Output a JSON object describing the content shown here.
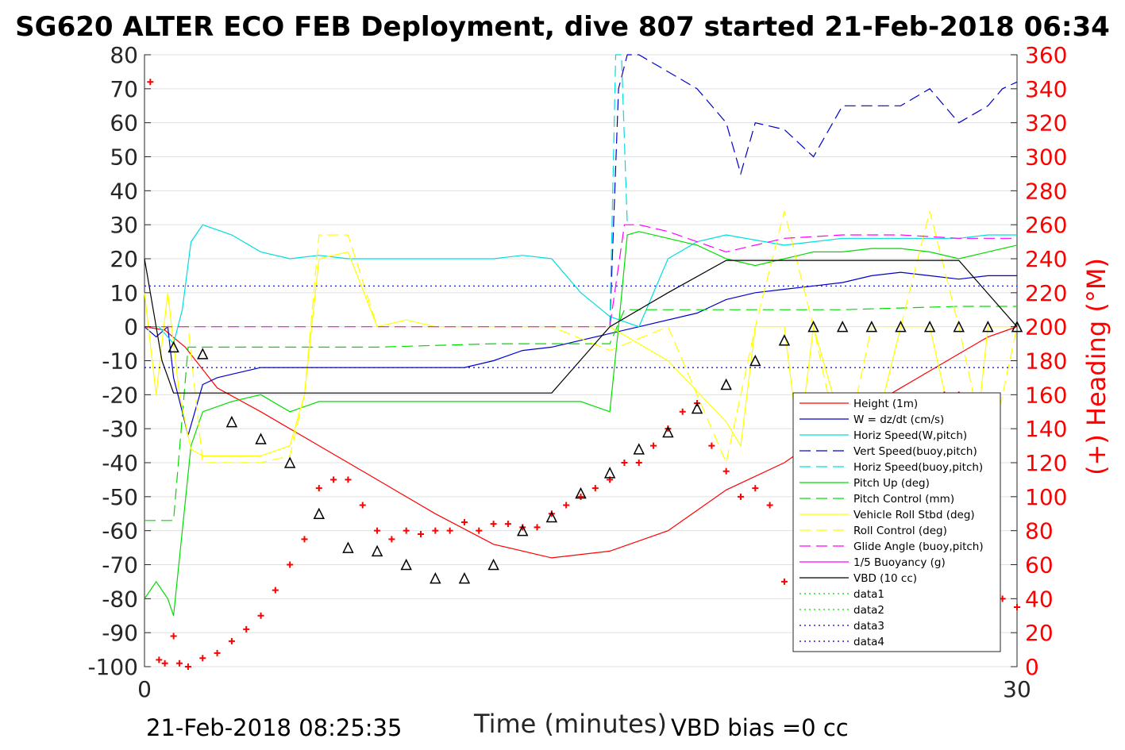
{
  "chart_data": {
    "type": "line",
    "title": "SG620 ALTER ECO FEB Deployment, dive 807 started 21-Feb-2018 06:34",
    "xlabel": "Time (minutes)",
    "ylabel": "",
    "y2label": "(+) Heading (°M)",
    "xlim": [
      0,
      30
    ],
    "ylim": [
      -100,
      80
    ],
    "y2lim": [
      0,
      360
    ],
    "x_ticks": [
      "0",
      "30"
    ],
    "y_ticks": [
      "80",
      "70",
      "60",
      "50",
      "40",
      "30",
      "20",
      "10",
      "0",
      "-10",
      "-20",
      "-30",
      "-40",
      "-50",
      "-60",
      "-70",
      "-80",
      "-90",
      "-100"
    ],
    "y2_ticks": [
      "360",
      "340",
      "320",
      "300",
      "280",
      "260",
      "240",
      "220",
      "200",
      "180",
      "160",
      "140",
      "120",
      "100",
      "80",
      "60",
      "40",
      "20",
      "0"
    ],
    "grid": true,
    "legend_position": "lower-right",
    "footer_timestamp": "21-Feb-2018 08:25:35",
    "footer_bias": "VBD bias =0 cc",
    "colors": {
      "heading": "#ff0000",
      "axis": "#262626",
      "grid": "#e0e0e0"
    },
    "legend": [
      {
        "label": "Height (1m)",
        "color": "#ff0000",
        "dash": "solid"
      },
      {
        "label": "W = dz/dt (cm/s)",
        "color": "#0000cc",
        "dash": "solid"
      },
      {
        "label": "Horiz Speed(W,pitch)",
        "color": "#00dddd",
        "dash": "solid"
      },
      {
        "label": "Vert Speed(buoy,pitch)",
        "color": "#0000cc",
        "dash": "long"
      },
      {
        "label": "Horiz Speed(buoy,pitch)",
        "color": "#00dddd",
        "dash": "long"
      },
      {
        "label": "Pitch Up (deg)",
        "color": "#00dd00",
        "dash": "solid"
      },
      {
        "label": "Pitch Control (mm)",
        "color": "#00dd00",
        "dash": "long"
      },
      {
        "label": "Vehicle Roll Stbd (deg)",
        "color": "#ffff00",
        "dash": "solid"
      },
      {
        "label": "Roll Control (deg)",
        "color": "#ffff00",
        "dash": "long"
      },
      {
        "label": "Glide Angle (buoy,pitch)",
        "color": "#ff00ff",
        "dash": "long"
      },
      {
        "label": "1/5 Buoyancy (g)",
        "color": "#ff00ff",
        "dash": "solid"
      },
      {
        "label": "VBD (10 cc)",
        "color": "#000000",
        "dash": "solid"
      },
      {
        "label": "data1",
        "color": "#00dd00",
        "dash": "dot"
      },
      {
        "label": "data2",
        "color": "#00dd00",
        "dash": "dot"
      },
      {
        "label": "data3",
        "color": "#0000cc",
        "dash": "dot"
      },
      {
        "label": "data4",
        "color": "#0000cc",
        "dash": "dot"
      }
    ],
    "series": [
      {
        "name": "Height (1m)",
        "x": [
          0,
          0.7,
          1.4,
          2.5,
          4,
          6,
          8,
          10,
          12,
          14,
          16,
          18,
          20,
          22,
          24,
          26,
          28,
          29,
          30
        ],
        "y": [
          0,
          -1,
          -6,
          -18,
          -25,
          -35,
          -45,
          -55,
          -64,
          -68,
          -66,
          -60,
          -48,
          -40,
          -28,
          -18,
          -8,
          -3,
          0
        ]
      },
      {
        "name": "W = dz/dt (cm/s)",
        "x": [
          0,
          0.4,
          0.8,
          1,
          1.3,
          1.5,
          2,
          2.5,
          3,
          4,
          6,
          8,
          10,
          11,
          12,
          13,
          14,
          15,
          17,
          19,
          20,
          21,
          22,
          23,
          24,
          25,
          26,
          27,
          28,
          29,
          30
        ],
        "y": [
          0,
          -3,
          0,
          -15,
          -25,
          -32,
          -17,
          -15,
          -14,
          -12,
          -12,
          -12,
          -12,
          -12,
          -10,
          -7,
          -6,
          -4,
          0,
          4,
          8,
          10,
          11,
          12,
          13,
          15,
          16,
          15,
          14,
          15,
          15
        ]
      },
      {
        "name": "Horiz Speed(W,pitch)",
        "x": [
          0,
          0.5,
          1,
          1.3,
          1.6,
          2,
          3,
          4,
          5,
          6,
          7,
          8,
          9,
          10,
          11,
          12,
          13,
          14,
          15,
          16,
          17,
          18,
          19,
          20,
          22,
          24,
          26,
          28,
          29,
          30
        ],
        "y": [
          0,
          0,
          -5,
          5,
          25,
          30,
          27,
          22,
          20,
          21,
          20,
          20,
          20,
          20,
          20,
          20,
          21,
          20,
          10,
          3,
          0,
          20,
          25,
          27,
          24,
          26,
          26,
          26,
          27,
          27
        ]
      },
      {
        "name": "Vert Speed(buoy,pitch)",
        "x": [
          16,
          16.3,
          16.6,
          17,
          18,
          19,
          20,
          20.5,
          21,
          22,
          23,
          24,
          25,
          26,
          27,
          28,
          29,
          29.5,
          30
        ],
        "y": [
          0,
          70,
          80,
          80,
          75,
          70,
          60,
          45,
          60,
          58,
          50,
          65,
          65,
          65,
          70,
          60,
          65,
          70,
          72
        ]
      },
      {
        "name": "Horiz Speed(buoy,pitch)",
        "x": [
          16,
          16.2,
          16.4,
          16.6
        ],
        "y": [
          0,
          80,
          80,
          30
        ]
      },
      {
        "name": "Pitch Up (deg)",
        "x": [
          0,
          0.4,
          0.8,
          1,
          1.3,
          1.6,
          2,
          3,
          4,
          5,
          6,
          7,
          8,
          9,
          10,
          11,
          12,
          13,
          14,
          15,
          16,
          16.3,
          16.6,
          17,
          18,
          19,
          20,
          21,
          22,
          23,
          24,
          25,
          26,
          27,
          28,
          29,
          30
        ],
        "y": [
          -80,
          -75,
          -80,
          -85,
          -60,
          -35,
          -25,
          -22,
          -20,
          -25,
          -22,
          -22,
          -22,
          -22,
          -22,
          -22,
          -22,
          -22,
          -22,
          -22,
          -25,
          0,
          27,
          28,
          26,
          24,
          20,
          18,
          20,
          22,
          22,
          23,
          23,
          22,
          20,
          22,
          24
        ]
      },
      {
        "name": "Pitch Control (mm)",
        "x": [
          0,
          1,
          1.5,
          2,
          4,
          8,
          12,
          16,
          16.5,
          20,
          24,
          28,
          30
        ],
        "y": [
          -57,
          -57,
          -6,
          -6,
          -6,
          -6,
          -5,
          -5,
          5,
          5,
          5,
          6,
          6
        ]
      },
      {
        "name": "Vehicle Roll Stbd (deg)",
        "x": [
          0,
          0.4,
          0.8,
          1.2,
          1.6,
          2,
          3,
          4,
          5,
          5.5,
          6,
          7,
          8,
          9,
          10,
          12,
          14,
          16,
          18,
          20,
          20.5,
          21,
          22,
          22.5,
          23,
          24,
          25,
          26,
          27,
          28,
          28.5,
          29,
          30
        ],
        "y": [
          10,
          -20,
          10,
          -20,
          -36,
          -38,
          -38,
          -38,
          -35,
          -20,
          20,
          22,
          0,
          2,
          0,
          0,
          0,
          0,
          -10,
          -28,
          -35,
          0,
          0,
          -35,
          0,
          -30,
          -35,
          0,
          0,
          -38,
          -40,
          0,
          0
        ]
      },
      {
        "name": "Roll Control (deg)",
        "x": [
          0,
          1.5,
          2,
          4,
          5,
          5.5,
          6,
          7,
          8,
          9,
          12,
          14,
          16,
          18,
          20,
          21,
          22,
          23,
          24,
          25,
          26,
          27,
          28,
          29,
          30
        ],
        "y": [
          0,
          0,
          -40,
          -40,
          -38,
          -20,
          27,
          27,
          0,
          0,
          0,
          0,
          -7,
          0,
          -40,
          0,
          34,
          0,
          -40,
          0,
          0,
          34,
          0,
          -40,
          0
        ]
      },
      {
        "name": "Glide Angle (buoy,pitch)",
        "x": [
          0,
          4,
          8,
          12,
          16,
          16.5,
          17,
          18,
          19,
          20,
          22,
          24,
          26,
          28,
          30
        ],
        "y": [
          0,
          0,
          0,
          0,
          0,
          30,
          30,
          28,
          25,
          22,
          26,
          27,
          27,
          26,
          26
        ]
      },
      {
        "name": "VBD (10 cc)",
        "x": [
          0,
          0.3,
          0.6,
          1,
          1.5,
          2,
          4,
          8,
          12,
          14,
          16,
          18,
          20,
          22,
          24,
          26,
          28,
          30
        ],
        "y": [
          20,
          5,
          -10,
          -19.5,
          -19.5,
          -19.5,
          -19.5,
          -19.5,
          -19.5,
          -19.5,
          0,
          10,
          19.5,
          19.5,
          19.5,
          19.5,
          19.5,
          0
        ]
      },
      {
        "name": "data3",
        "x": [
          0,
          30
        ],
        "y": [
          12,
          12
        ]
      },
      {
        "name": "data4",
        "x": [
          0,
          30
        ],
        "y": [
          -12,
          -12
        ]
      }
    ],
    "heading_series": {
      "name": "(+) Heading",
      "x": [
        0.2,
        0.5,
        0.7,
        1,
        1.2,
        1.5,
        2,
        2.5,
        3,
        3.5,
        4,
        4.5,
        5,
        5.5,
        6,
        6.5,
        7,
        7.5,
        8,
        8.5,
        9,
        9.5,
        10,
        10.5,
        11,
        11.5,
        12,
        12.5,
        13,
        13.5,
        14,
        14.5,
        15,
        15.5,
        16,
        16.5,
        17,
        17.5,
        18,
        18.5,
        19,
        19.5,
        20,
        20.5,
        21,
        21.5,
        22,
        22.5,
        23,
        23.5,
        24,
        24.5,
        25,
        25.5,
        26,
        26.5,
        27,
        27.5,
        28,
        28.5,
        29,
        29.5,
        30
      ],
      "y": [
        344,
        4,
        2,
        18,
        2,
        0,
        5,
        8,
        15,
        22,
        30,
        45,
        60,
        75,
        105,
        110,
        110,
        95,
        80,
        75,
        80,
        78,
        80,
        80,
        85,
        80,
        84,
        84,
        82,
        82,
        90,
        95,
        100,
        105,
        110,
        120,
        120,
        130,
        140,
        150,
        155,
        130,
        115,
        100,
        105,
        95,
        50,
        40,
        45,
        45,
        90,
        120,
        100,
        100,
        40,
        50,
        100,
        160,
        160,
        100,
        50,
        40,
        35
      ]
    },
    "markers": {
      "x": [
        1,
        2,
        3,
        4,
        5,
        6,
        7,
        8,
        9,
        10,
        11,
        12,
        13,
        14,
        15,
        16,
        17,
        18,
        19,
        20,
        21,
        22,
        23,
        24,
        25,
        26,
        27,
        28,
        29,
        30
      ],
      "y": [
        -6,
        -8,
        -28,
        -33,
        -40,
        -55,
        -65,
        -66,
        -70,
        -74,
        -74,
        -70,
        -60,
        -56,
        -49,
        -43,
        -36,
        -31,
        -24,
        -17,
        -10,
        -4,
        0,
        0,
        0,
        0,
        0,
        0,
        0,
        0
      ]
    }
  }
}
